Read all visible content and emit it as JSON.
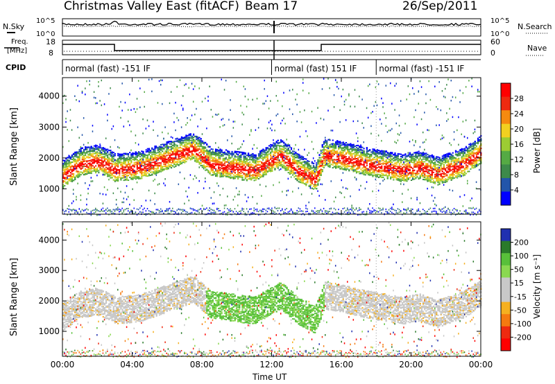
{
  "header": {
    "title": "Christmas Valley East (fitACF)",
    "beam": "Beam 17",
    "date": "26/Sep/2011"
  },
  "noise_panel": {
    "left_label": "N.Sky",
    "left_ticks": [
      "10^5",
      "10^0"
    ],
    "right_ticks": [
      "10^5",
      "10^0"
    ],
    "right_label": "N.Search"
  },
  "freq_panel": {
    "left_label_1": "Freq.",
    "left_label_2": "[MHz]",
    "left_ticks": [
      "18",
      "8"
    ],
    "right_ticks": [
      "60",
      "0"
    ],
    "right_label": "Nave"
  },
  "cpid_panel": {
    "label": "CPID",
    "segments": [
      {
        "start_hour": 0,
        "end_hour": 12,
        "text": "normal (fast) -151 IF"
      },
      {
        "start_hour": 12,
        "end_hour": 18,
        "text": "normal (fast) 151 IF"
      },
      {
        "start_hour": 18,
        "end_hour": 24,
        "text": "normal (fast) -151 IF"
      }
    ]
  },
  "time_axis": {
    "label": "Time UT",
    "ticks": [
      "00:00",
      "04:00",
      "08:00",
      "12:00",
      "16:00",
      "20:00",
      "00:00"
    ],
    "tick_hours": [
      0,
      4,
      8,
      12,
      16,
      20,
      24
    ]
  },
  "colors": {
    "power_scale": [
      "#0000ff",
      "#2255aa",
      "#3d8a4a",
      "#55aa44",
      "#9ccc33",
      "#f2d020",
      "#f58a10",
      "#ee2a10",
      "#ff0000"
    ],
    "velocity_scale": [
      "#2030b0",
      "#2a7a2a",
      "#58c03a",
      "#8ad850",
      "#c8c8c8",
      "#c8c8c8",
      "#f5b020",
      "#f57a10",
      "#ee2a10",
      "#ff0000"
    ]
  },
  "chart_data": [
    {
      "type": "heatmap",
      "title": "Power",
      "xlabel": "Time UT",
      "ylabel": "Slant Range [km]",
      "xlim_hours": [
        0,
        24
      ],
      "ylim": [
        180,
        4600
      ],
      "yticks": [
        1000,
        2000,
        3000,
        4000
      ],
      "colorbar": {
        "label": "Power [dB]",
        "ticks": [
          "4",
          "8",
          "12",
          "16",
          "20",
          "24",
          "28"
        ],
        "range": [
          0,
          30
        ]
      },
      "features": [
        {
          "name": "main scatter band",
          "points": [
            [
              0,
              1400
            ],
            [
              1,
              1800
            ],
            [
              2,
              1900
            ],
            [
              2.8,
              1700
            ],
            [
              3,
              1600
            ],
            [
              4.5,
              1700
            ],
            [
              6,
              2000
            ],
            [
              7.5,
              2300
            ],
            [
              8.5,
              1800
            ],
            [
              11,
              1600
            ],
            [
              12.5,
              2100
            ],
            [
              13.5,
              1600
            ],
            [
              14.5,
              1300
            ],
            [
              15,
              2100
            ],
            [
              16,
              2000
            ],
            [
              17.5,
              1800
            ],
            [
              19.5,
              1600
            ],
            [
              20.5,
              1700
            ],
            [
              21.5,
              1500
            ],
            [
              23,
              1800
            ],
            [
              24,
              2200
            ]
          ],
          "value_db": 26
        }
      ]
    },
    {
      "type": "heatmap",
      "title": "Velocity",
      "xlabel": "Time UT",
      "ylabel": "Slant Range [km]",
      "xlim_hours": [
        0,
        24
      ],
      "ylim": [
        180,
        4600
      ],
      "yticks": [
        1000,
        2000,
        3000,
        4000
      ],
      "colorbar": {
        "label": "Velocity [m s⁻¹]",
        "ticks": [
          "200",
          "100",
          "50",
          "15",
          "-15",
          "-50",
          "-100",
          "-200"
        ],
        "range": [
          -250,
          250
        ]
      },
      "features": [
        {
          "name": "ground scatter band",
          "points": [
            [
              0,
              1400
            ],
            [
              3,
              1700
            ],
            [
              6,
              2100
            ],
            [
              8,
              1900
            ],
            [
              12,
              1600
            ],
            [
              15,
              2100
            ],
            [
              18,
              2000
            ],
            [
              21,
              1800
            ],
            [
              24,
              2100
            ]
          ],
          "value_ms": 0
        }
      ]
    }
  ]
}
